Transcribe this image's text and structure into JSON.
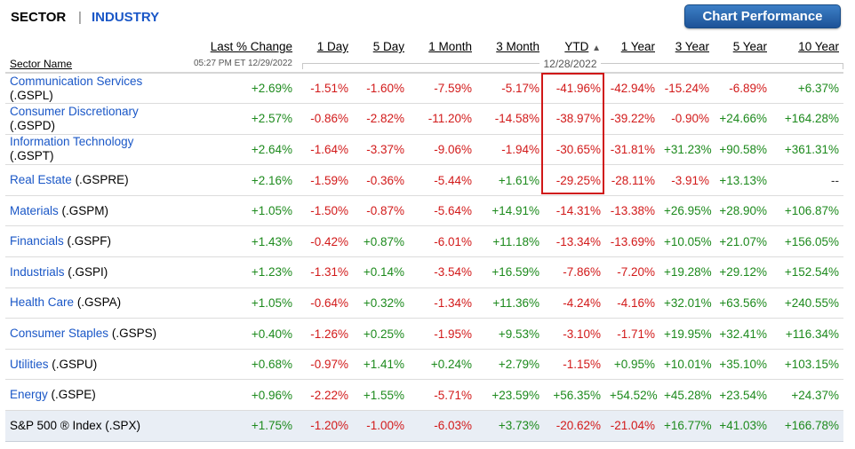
{
  "tabs": {
    "sector": "SECTOR",
    "separator": "|",
    "industry": "INDUSTRY"
  },
  "chart_button": "Chart Performance",
  "columns": [
    "Last % Change",
    "1 Day",
    "5 Day",
    "1 Month",
    "3 Month",
    "YTD",
    "1 Year",
    "3 Year",
    "5 Year",
    "10 Year"
  ],
  "sort_arrow": "▲",
  "sector_name_header": "Sector Name",
  "timestamp": "05:27 PM ET 12/29/2022",
  "range_date": "12/28/2022",
  "rows": [
    {
      "name": "Communication Services",
      "ticker": "(.GSPL)",
      "values": [
        "+2.69%",
        "-1.51%",
        "-1.60%",
        "-7.59%",
        "-5.17%",
        "-41.96%",
        "-42.94%",
        "-15.24%",
        "-6.89%",
        "+6.37%"
      ]
    },
    {
      "name": "Consumer Discretionary",
      "ticker": "(.GSPD)",
      "values": [
        "+2.57%",
        "-0.86%",
        "-2.82%",
        "-11.20%",
        "-14.58%",
        "-38.97%",
        "-39.22%",
        "-0.90%",
        "+24.66%",
        "+164.28%"
      ]
    },
    {
      "name": "Information Technology",
      "ticker": "(.GSPT)",
      "values": [
        "+2.64%",
        "-1.64%",
        "-3.37%",
        "-9.06%",
        "-1.94%",
        "-30.65%",
        "-31.81%",
        "+31.23%",
        "+90.58%",
        "+361.31%"
      ]
    },
    {
      "name": "Real Estate",
      "ticker": "(.GSPRE)",
      "values": [
        "+2.16%",
        "-1.59%",
        "-0.36%",
        "-5.44%",
        "+1.61%",
        "-29.25%",
        "-28.11%",
        "-3.91%",
        "+13.13%",
        "--"
      ]
    },
    {
      "name": "Materials",
      "ticker": "(.GSPM)",
      "values": [
        "+1.05%",
        "-1.50%",
        "-0.87%",
        "-5.64%",
        "+14.91%",
        "-14.31%",
        "-13.38%",
        "+26.95%",
        "+28.90%",
        "+106.87%"
      ]
    },
    {
      "name": "Financials",
      "ticker": "(.GSPF)",
      "values": [
        "+1.43%",
        "-0.42%",
        "+0.87%",
        "-6.01%",
        "+11.18%",
        "-13.34%",
        "-13.69%",
        "+10.05%",
        "+21.07%",
        "+156.05%"
      ]
    },
    {
      "name": "Industrials",
      "ticker": "(.GSPI)",
      "values": [
        "+1.23%",
        "-1.31%",
        "+0.14%",
        "-3.54%",
        "+16.59%",
        "-7.86%",
        "-7.20%",
        "+19.28%",
        "+29.12%",
        "+152.54%"
      ]
    },
    {
      "name": "Health Care",
      "ticker": "(.GSPA)",
      "values": [
        "+1.05%",
        "-0.64%",
        "+0.32%",
        "-1.34%",
        "+11.36%",
        "-4.24%",
        "-4.16%",
        "+32.01%",
        "+63.56%",
        "+240.55%"
      ]
    },
    {
      "name": "Consumer Staples",
      "ticker": "(.GSPS)",
      "values": [
        "+0.40%",
        "-1.26%",
        "+0.25%",
        "-1.95%",
        "+9.53%",
        "-3.10%",
        "-1.71%",
        "+19.95%",
        "+32.41%",
        "+116.34%"
      ]
    },
    {
      "name": "Utilities",
      "ticker": "(.GSPU)",
      "values": [
        "+0.68%",
        "-0.97%",
        "+1.41%",
        "+0.24%",
        "+2.79%",
        "-1.15%",
        "+0.95%",
        "+10.01%",
        "+35.10%",
        "+103.15%"
      ]
    },
    {
      "name": "Energy",
      "ticker": "(.GSPE)",
      "values": [
        "+0.96%",
        "-2.22%",
        "+1.55%",
        "-5.71%",
        "+23.59%",
        "+56.35%",
        "+54.52%",
        "+45.28%",
        "+23.54%",
        "+24.37%"
      ]
    },
    {
      "name": "S&P 500 ® Index",
      "ticker": "(.SPX)",
      "values": [
        "+1.75%",
        "-1.20%",
        "-1.00%",
        "-6.03%",
        "+3.73%",
        "-20.62%",
        "-21.04%",
        "+16.77%",
        "+41.03%",
        "+166.78%"
      ],
      "is_index": true
    }
  ],
  "colors": {
    "positive": "#1d8a1d",
    "negative": "#d21a1a",
    "link": "#1a57c7",
    "highlight_box": "#d01818"
  }
}
